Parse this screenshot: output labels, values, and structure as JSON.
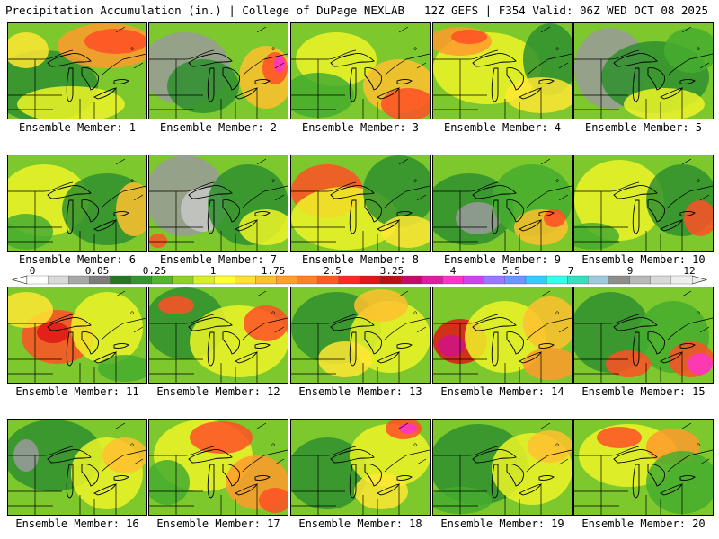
{
  "header": {
    "left_title": "Precipitation Accumulation (in.) | College of DuPage NEXLAB",
    "right_title": "12Z GEFS | F354 Valid: 06Z WED OCT 08 2025"
  },
  "colorbar": {
    "labels": [
      "0",
      "0.05",
      "0.25",
      "1",
      "1.75",
      "2.5",
      "3.25",
      "4",
      "5.5",
      "7",
      "9",
      "12"
    ],
    "colors": [
      "#ffffff",
      "#d9d9d9",
      "#a8a8a8",
      "#7c7c7c",
      "#1f7a1f",
      "#2e9a2e",
      "#4cb82c",
      "#8fd02a",
      "#d6ef28",
      "#ffff33",
      "#ffe033",
      "#ffc030",
      "#ff9f2e",
      "#ff7f2a",
      "#ff5a26",
      "#ff2a1f",
      "#e01616",
      "#b81212",
      "#c40a6a",
      "#e01aa8",
      "#ff33cc",
      "#cc44ee",
      "#9977ff",
      "#6699ff",
      "#33ccff",
      "#33ffee",
      "#33e0c0",
      "#9ecae1",
      "#8d8d8d",
      "#b8b8b8",
      "#d8d8d8",
      "#eeeeee"
    ]
  },
  "panels": [
    {
      "label": "Ensemble Member: 1"
    },
    {
      "label": "Ensemble Member: 2"
    },
    {
      "label": "Ensemble Member: 3"
    },
    {
      "label": "Ensemble Member: 4"
    },
    {
      "label": "Ensemble Member: 5"
    },
    {
      "label": "Ensemble Member: 6"
    },
    {
      "label": "Ensemble Member: 7"
    },
    {
      "label": "Ensemble Member: 8"
    },
    {
      "label": "Ensemble Member: 9"
    },
    {
      "label": "Ensemble Member: 10"
    },
    {
      "label": "Ensemble Member: 11"
    },
    {
      "label": "Ensemble Member: 12"
    },
    {
      "label": "Ensemble Member: 13"
    },
    {
      "label": "Ensemble Member: 14"
    },
    {
      "label": "Ensemble Member: 15"
    },
    {
      "label": "Ensemble Member: 16"
    },
    {
      "label": "Ensemble Member: 17"
    },
    {
      "label": "Ensemble Member: 18"
    },
    {
      "label": "Ensemble Member: 19"
    },
    {
      "label": "Ensemble Member: 20"
    }
  ]
}
